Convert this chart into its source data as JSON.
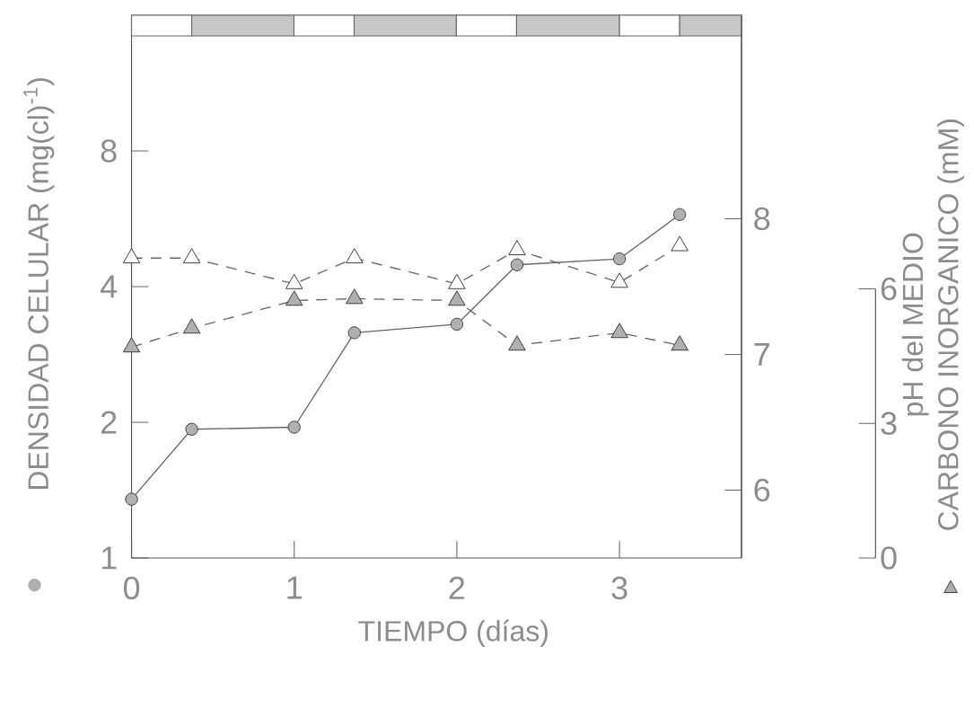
{
  "chart_data": {
    "type": "line",
    "xlabel": "TIEMPO (días)",
    "ylabel": "DENSIDAD CELULAR (mg(cl)$^{-1}$)",
    "y2label": "pH del MEDIO",
    "y3label": "CARBONO INORGANICO (mM)",
    "x": [
      0,
      0.37,
      1,
      1.37,
      2,
      2.37,
      3,
      3.37
    ],
    "xlim": [
      0,
      3.75
    ],
    "xticks": [
      0,
      1,
      2,
      3
    ],
    "ylim": [
      1,
      16
    ],
    "yticks": [
      1,
      2,
      4,
      8
    ],
    "log": "y",
    "y2lim": [
      5.5,
      9.5
    ],
    "y2ticks": [
      6,
      7,
      8
    ],
    "y3lim": [
      0,
      12.1
    ],
    "y3ticks": [
      0,
      3,
      6
    ],
    "series": [
      {
        "color": "#b0b0b0",
        "marker": "circle",
        "line_style": "solid",
        "values": [
          1.35,
          1.93,
          1.95,
          3.16,
          3.3,
          4.47,
          4.61,
          5.78
        ]
      },
      {
        "color": "#ffffff",
        "marker": "triangle",
        "line_style": "dashed",
        "axis": "y2",
        "values": [
          7.71,
          7.71,
          7.52,
          7.71,
          7.52,
          7.77,
          7.53,
          7.8
        ]
      },
      {
        "color": "#b0b0b0",
        "marker": "triangle",
        "line_style": "dashed",
        "axis": "y3",
        "values": [
          4.7,
          5.12,
          5.74,
          5.78,
          5.74,
          4.74,
          5.02,
          4.74
        ]
      }
    ]
  }
}
